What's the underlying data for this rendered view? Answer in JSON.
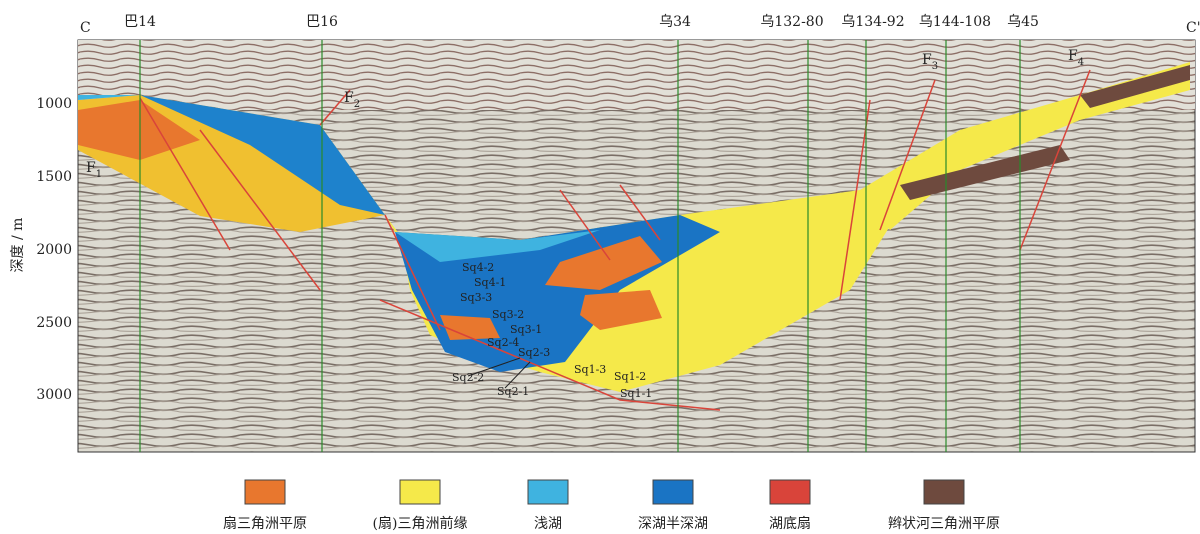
{
  "axis": {
    "label": "深度 / m",
    "ticks": [
      "1000",
      "1500",
      "2000",
      "2500",
      "3000"
    ]
  },
  "section": {
    "start": "C",
    "end": "C'"
  },
  "wells": [
    "巴14",
    "巴16",
    "乌34",
    "乌132-80",
    "乌134-92",
    "乌144-108",
    "乌45"
  ],
  "faults": [
    {
      "letter": "F",
      "sub": "1"
    },
    {
      "letter": "F",
      "sub": "2"
    },
    {
      "letter": "F",
      "sub": "3"
    },
    {
      "letter": "F",
      "sub": "4"
    }
  ],
  "sequences": [
    "Sq4-2",
    "Sq4-1",
    "Sq3-3",
    "Sq3-2",
    "Sq3-1",
    "Sq2-4",
    "Sq2-3",
    "Sq2-2",
    "Sq2-1",
    "Sq1-3",
    "Sq1-2",
    "Sq1-1"
  ],
  "legend": [
    "扇三角洲平原",
    "(扇)三角洲前缘",
    "浅湖",
    "深湖半深湖",
    "湖底扇",
    "辫状河三角洲平原"
  ]
}
